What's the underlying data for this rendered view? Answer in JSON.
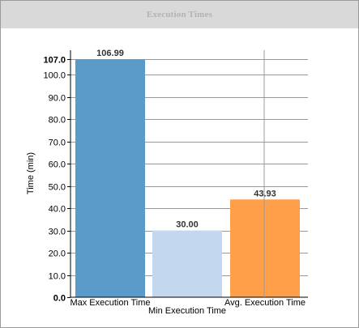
{
  "chart_data": {
    "type": "bar",
    "title": "Execution Times",
    "ylabel": "Time (min)",
    "ylim": [
      0,
      107.0
    ],
    "yticks": [
      "0.0",
      "10.0",
      "20.0",
      "30.0",
      "40.0",
      "50.0",
      "60.0",
      "70.0",
      "80.0",
      "90.0",
      "100.0",
      "107.0"
    ],
    "ytick_values": [
      0,
      10,
      20,
      30,
      40,
      50,
      60,
      70,
      80,
      90,
      100,
      107
    ],
    "categories": [
      "Max Execution Time",
      "Min Execution Time",
      "Avg. Execution Time"
    ],
    "values": [
      106.99,
      30.0,
      43.93
    ],
    "value_labels": [
      "106.99",
      "30.00",
      "43.93"
    ],
    "colors": [
      "#5b9bca",
      "#c3d7ef",
      "#ff9f4a"
    ],
    "grid": true,
    "legend": "none"
  }
}
